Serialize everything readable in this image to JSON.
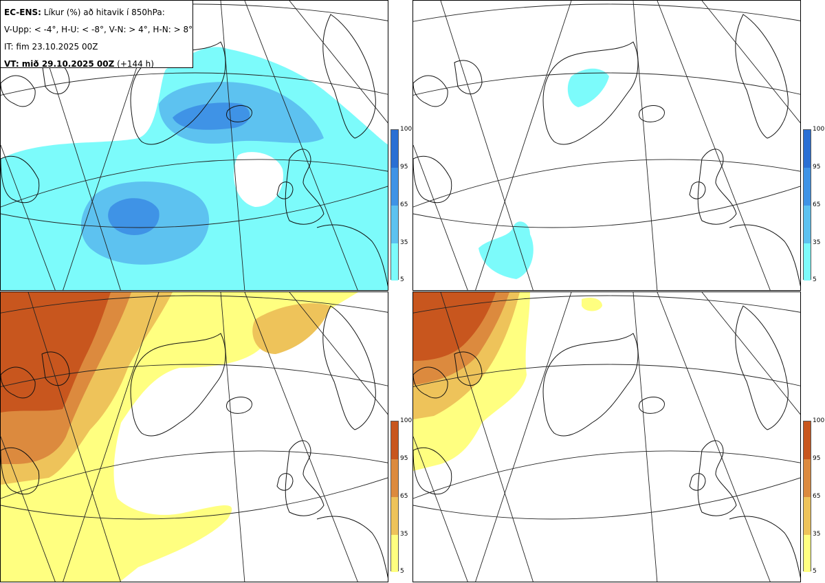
{
  "header": {
    "title_bold": "EC-ENS:",
    "title_rest": " Líkur (%) að hitavik í 850hPa:",
    "thresholds": "V-Upp: < -4°, H-U: < -8°, V-N: > 4°, H-N: > 8°",
    "init_time": "IT: fim 23.10.2025 00Z",
    "valid_bold": "VT: mið 29.10.2025 00Z",
    "valid_rest": " (+144 h)"
  },
  "panels": [
    {
      "id": "upper-left",
      "label": "V-Upp",
      "threshold": "< -4°",
      "scheme": "cold"
    },
    {
      "id": "upper-right",
      "label": "H-U",
      "threshold": "< -8°",
      "scheme": "cold"
    },
    {
      "id": "lower-left",
      "label": "V-N",
      "threshold": "> 4°",
      "scheme": "warm"
    },
    {
      "id": "lower-right",
      "label": "H-N",
      "threshold": "> 8°",
      "scheme": "warm"
    }
  ],
  "legend": {
    "ticks": [
      "100",
      "95",
      "65",
      "35",
      "5"
    ],
    "cold_colors": [
      "#2a6fd4",
      "#3f93e6",
      "#5dc2f0",
      "#7cfbfb"
    ],
    "warm_colors": [
      "#c8561e",
      "#dc8a3e",
      "#eec35a",
      "#ffff80"
    ]
  },
  "colors": {
    "cold": {
      "c35": "#7cfbfb",
      "c65": "#5dc2f0",
      "c95": "#3f93e6"
    },
    "warm": {
      "c35": "#ffff80",
      "c65": "#eec35a",
      "c95": "#dc8a3e",
      "c100": "#c8561e"
    }
  }
}
